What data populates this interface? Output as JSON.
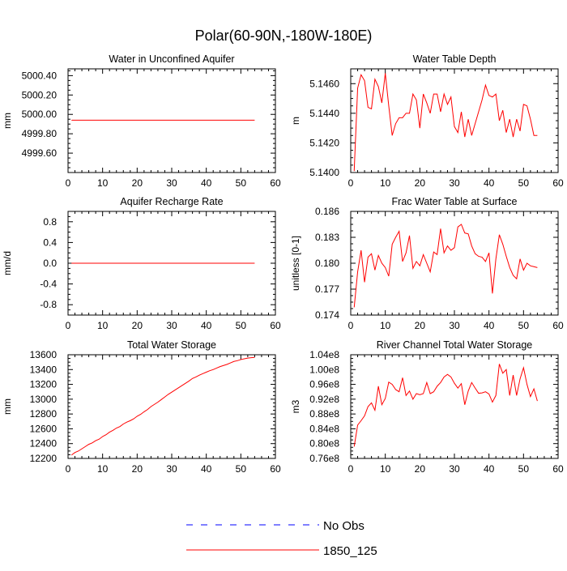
{
  "page_title": "Polar(60-90N,-180W-180E)",
  "legend": [
    {
      "label": "No Obs",
      "color": "#0000ff",
      "dash": true
    },
    {
      "label": "1850_125",
      "color": "#ff0000",
      "dash": false
    }
  ],
  "chart_data": [
    {
      "type": "line",
      "title": "Water in Unconfined Aquifer",
      "ylabel": "mm",
      "xlim": [
        0,
        60
      ],
      "ylim": [
        4999.4,
        5000.47
      ],
      "xticks": [
        0,
        10,
        20,
        30,
        40,
        50,
        60
      ],
      "yticks": [
        4999.6,
        4999.8,
        5000.0,
        5000.2,
        5000.4
      ],
      "ytick_labels": [
        "4999.60",
        "4999.80",
        "5000.00",
        "5000.20",
        "5000.40"
      ],
      "series": [
        {
          "name": "1850_125",
          "color": "#ff0000",
          "x": [
            1,
            54
          ],
          "y": [
            4999.94,
            4999.94
          ]
        }
      ]
    },
    {
      "type": "line",
      "title": "Water Table Depth",
      "ylabel": "m",
      "xlim": [
        0,
        60
      ],
      "ylim": [
        5.14,
        5.147
      ],
      "xticks": [
        0,
        10,
        20,
        30,
        40,
        50,
        60
      ],
      "yticks": [
        5.14,
        5.142,
        5.144,
        5.146
      ],
      "ytick_labels": [
        "5.1400",
        "5.1420",
        "5.1440",
        "5.1460"
      ],
      "series": [
        {
          "name": "1850_125",
          "color": "#ff0000",
          "x": [
            1,
            2,
            3,
            4,
            5,
            6,
            7,
            8,
            9,
            10,
            11,
            12,
            13,
            14,
            15,
            16,
            17,
            18,
            19,
            20,
            21,
            22,
            23,
            24,
            25,
            26,
            27,
            28,
            29,
            30,
            31,
            32,
            33,
            34,
            35,
            36,
            37,
            38,
            39,
            40,
            41,
            42,
            43,
            44,
            45,
            46,
            47,
            48,
            49,
            50,
            51,
            52,
            53,
            54
          ],
          "y": [
            5.1401,
            5.1457,
            5.1466,
            5.1462,
            5.1444,
            5.1443,
            5.1463,
            5.1458,
            5.1447,
            5.1467,
            5.1445,
            5.1425,
            5.1433,
            5.1437,
            5.1437,
            5.144,
            5.144,
            5.1453,
            5.1449,
            5.143,
            5.1453,
            5.1447,
            5.144,
            5.1453,
            5.1453,
            5.1441,
            5.1453,
            5.1446,
            5.1451,
            5.1431,
            5.1427,
            5.1441,
            5.1424,
            5.1436,
            5.1425,
            5.1433,
            5.1441,
            5.1449,
            5.1459,
            5.1452,
            5.1451,
            5.1453,
            5.1435,
            5.1442,
            5.1427,
            5.1436,
            5.1424,
            5.1436,
            5.1428,
            5.1446,
            5.1445,
            5.1436,
            5.1425,
            5.1425
          ]
        }
      ]
    },
    {
      "type": "line",
      "title": "Aquifer Recharge Rate",
      "ylabel": "mm/d",
      "xlim": [
        0,
        60
      ],
      "ylim": [
        -1.0,
        1.0
      ],
      "xticks": [
        0,
        10,
        20,
        30,
        40,
        50,
        60
      ],
      "yticks": [
        -0.8,
        -0.4,
        0.0,
        0.4,
        0.8
      ],
      "ytick_labels": [
        "-0.8",
        "-0.4",
        "0.0",
        "0.4",
        "0.8"
      ],
      "series": [
        {
          "name": "1850_125",
          "color": "#ff0000",
          "x": [
            1,
            54
          ],
          "y": [
            0.0,
            0.0
          ]
        }
      ]
    },
    {
      "type": "line",
      "title": "Frac Water Table at Surface",
      "ylabel": "unitless [0-1]",
      "xlim": [
        0,
        60
      ],
      "ylim": [
        0.174,
        0.186
      ],
      "xticks": [
        0,
        10,
        20,
        30,
        40,
        50,
        60
      ],
      "yticks": [
        0.174,
        0.177,
        0.18,
        0.183,
        0.186
      ],
      "ytick_labels": [
        "0.174",
        "0.177",
        "0.180",
        "0.183",
        "0.186"
      ],
      "series": [
        {
          "name": "1850_125",
          "color": "#ff0000",
          "x": [
            1,
            2,
            3,
            4,
            5,
            6,
            7,
            8,
            9,
            10,
            11,
            12,
            13,
            14,
            15,
            16,
            17,
            18,
            19,
            20,
            21,
            22,
            23,
            24,
            25,
            26,
            27,
            28,
            29,
            30,
            31,
            32,
            33,
            34,
            35,
            36,
            37,
            38,
            39,
            40,
            41,
            42,
            43,
            44,
            45,
            46,
            47,
            48,
            49,
            50,
            51,
            52,
            53,
            54
          ],
          "y": [
            0.1749,
            0.179,
            0.1815,
            0.1778,
            0.1807,
            0.1811,
            0.1792,
            0.1809,
            0.18,
            0.1795,
            0.1785,
            0.1822,
            0.183,
            0.1837,
            0.1802,
            0.1812,
            0.1832,
            0.1794,
            0.1802,
            0.1797,
            0.181,
            0.18,
            0.179,
            0.1813,
            0.181,
            0.184,
            0.1812,
            0.182,
            0.1815,
            0.1818,
            0.1842,
            0.1845,
            0.1835,
            0.1834,
            0.182,
            0.1811,
            0.1808,
            0.1807,
            0.1802,
            0.1812,
            0.1765,
            0.1805,
            0.1833,
            0.1822,
            0.1808,
            0.1795,
            0.1786,
            0.1782,
            0.1805,
            0.1792,
            0.18,
            0.1797,
            0.1796,
            0.1795
          ]
        }
      ]
    },
    {
      "type": "line",
      "title": "Total Water Storage",
      "ylabel": "mm",
      "xlim": [
        0,
        60
      ],
      "ylim": [
        12200,
        13600
      ],
      "xticks": [
        0,
        10,
        20,
        30,
        40,
        50,
        60
      ],
      "yticks": [
        12200,
        12400,
        12600,
        12800,
        13000,
        13200,
        13400,
        13600
      ],
      "ytick_labels": [
        "12200",
        "12400",
        "12600",
        "12800",
        "13000",
        "13200",
        "13400",
        "13600"
      ],
      "series": [
        {
          "name": "1850_125",
          "color": "#ff0000",
          "x": [
            1,
            2,
            3,
            4,
            5,
            6,
            7,
            8,
            9,
            10,
            11,
            12,
            13,
            14,
            15,
            16,
            17,
            18,
            19,
            20,
            21,
            22,
            23,
            24,
            25,
            26,
            27,
            28,
            29,
            30,
            31,
            32,
            33,
            34,
            35,
            36,
            37,
            38,
            39,
            40,
            41,
            42,
            43,
            44,
            45,
            46,
            47,
            48,
            49,
            50,
            51,
            52,
            53,
            54
          ],
          "y": [
            12245,
            12280,
            12300,
            12330,
            12360,
            12390,
            12410,
            12440,
            12460,
            12495,
            12520,
            12555,
            12580,
            12610,
            12630,
            12665,
            12690,
            12710,
            12735,
            12770,
            12795,
            12830,
            12860,
            12900,
            12930,
            12960,
            12995,
            13030,
            13065,
            13095,
            13125,
            13155,
            13185,
            13215,
            13245,
            13280,
            13300,
            13325,
            13345,
            13365,
            13385,
            13400,
            13420,
            13440,
            13455,
            13470,
            13490,
            13510,
            13520,
            13535,
            13545,
            13555,
            13560,
            13565
          ]
        }
      ]
    },
    {
      "type": "line",
      "title": "River Channel Total Water Storage",
      "ylabel": "m3",
      "xlim": [
        0,
        60
      ],
      "ylim": [
        76000000.0,
        104000000.0
      ],
      "xticks": [
        0,
        10,
        20,
        30,
        40,
        50,
        60
      ],
      "yticks": [
        76000000.0,
        80000000.0,
        84000000.0,
        88000000.0,
        92000000.0,
        96000000.0,
        100000000.0,
        104000000.0
      ],
      "ytick_labels": [
        "0.76e8",
        "0.80e8",
        "0.84e8",
        "0.88e8",
        "0.92e8",
        "0.96e8",
        "1.00e8",
        "1.04e8"
      ],
      "series": [
        {
          "name": "1850_125",
          "color": "#ff0000",
          "x": [
            1,
            2,
            3,
            4,
            5,
            6,
            7,
            8,
            9,
            10,
            11,
            12,
            13,
            14,
            15,
            16,
            17,
            18,
            19,
            20,
            21,
            22,
            23,
            24,
            25,
            26,
            27,
            28,
            29,
            30,
            31,
            32,
            33,
            34,
            35,
            36,
            37,
            38,
            39,
            40,
            41,
            42,
            43,
            44,
            45,
            46,
            47,
            48,
            49,
            50,
            51,
            52,
            53,
            54
          ],
          "y": [
            79200000.0,
            85000000.0,
            86200000.0,
            87500000.0,
            90000000.0,
            91000000.0,
            89000000.0,
            95500000.0,
            90500000.0,
            92200000.0,
            96600000.0,
            96000000.0,
            94600000.0,
            94000000.0,
            97800000.0,
            93000000.0,
            94200000.0,
            92000000.0,
            93500000.0,
            93200000.0,
            93500000.0,
            96500000.0,
            93500000.0,
            94000000.0,
            95500000.0,
            96500000.0,
            98000000.0,
            98700000.0,
            98000000.0,
            96300000.0,
            95000000.0,
            96200000.0,
            90500000.0,
            94200000.0,
            96500000.0,
            95000000.0,
            93600000.0,
            93700000.0,
            94000000.0,
            93400000.0,
            91200000.0,
            93000000.0,
            101500000.0,
            99000000.0,
            100000000.0,
            93000000.0,
            98500000.0,
            93000000.0,
            97500000.0,
            100500000.0,
            96000000.0,
            92700000.0,
            94800000.0,
            91500000.0
          ]
        }
      ]
    }
  ]
}
